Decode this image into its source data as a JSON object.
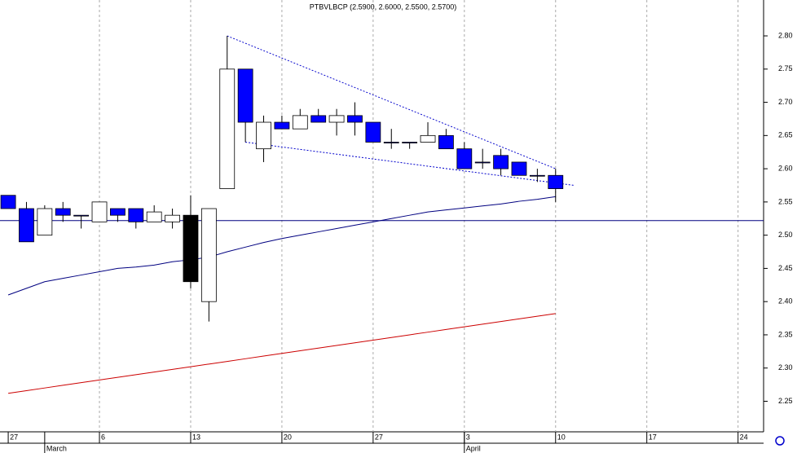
{
  "chart_data": {
    "type": "candlestick",
    "title": "PTBVLBCP (2.5900, 2.6000, 2.5500, 2.5700)",
    "categories": [
      "27",
      null,
      null,
      null,
      null,
      "6",
      null,
      null,
      null,
      null,
      "13",
      null,
      null,
      null,
      null,
      "20",
      null,
      null,
      null,
      null,
      "27",
      null,
      null,
      null,
      null,
      "3",
      null,
      null,
      null,
      null,
      "10",
      null,
      null,
      null,
      null,
      "17",
      null,
      null,
      null,
      null,
      "24"
    ],
    "month_labels": [
      null,
      null,
      "March",
      null,
      null,
      null,
      null,
      null,
      null,
      null,
      null,
      null,
      null,
      null,
      null,
      null,
      null,
      null,
      null,
      null,
      null,
      null,
      null,
      null,
      null,
      "April",
      null,
      null,
      null,
      null,
      null,
      null,
      null,
      null,
      null,
      null,
      null,
      null,
      null,
      null,
      null
    ],
    "open": [
      2.56,
      2.54,
      2.5,
      2.54,
      2.53,
      2.52,
      2.54,
      2.54,
      2.52,
      2.52,
      2.53,
      2.4,
      2.57,
      2.75,
      2.63,
      2.67,
      2.66,
      2.68,
      2.67,
      2.68,
      2.67,
      2.64,
      2.64,
      2.64,
      2.65,
      2.63,
      2.61,
      2.62,
      2.61,
      2.59,
      2.59,
      null,
      null,
      null,
      null,
      null,
      null,
      null,
      null,
      null,
      null
    ],
    "high": [
      2.56,
      2.55,
      2.545,
      2.55,
      2.53,
      2.55,
      2.54,
      2.54,
      2.545,
      2.54,
      2.56,
      2.54,
      2.8,
      2.75,
      2.68,
      2.68,
      2.69,
      2.69,
      2.69,
      2.7,
      2.67,
      2.66,
      2.64,
      2.67,
      2.66,
      2.64,
      2.63,
      2.63,
      2.61,
      2.6,
      2.6,
      null,
      null,
      null,
      null,
      null,
      null,
      null,
      null,
      null,
      null
    ],
    "low": [
      2.54,
      2.49,
      2.5,
      2.52,
      2.51,
      2.52,
      2.52,
      2.51,
      2.52,
      2.51,
      2.42,
      2.37,
      2.57,
      2.64,
      2.61,
      2.66,
      2.66,
      2.67,
      2.65,
      2.65,
      2.64,
      2.63,
      2.63,
      2.64,
      2.63,
      2.6,
      2.6,
      2.59,
      2.59,
      2.58,
      2.55,
      null,
      null,
      null,
      null,
      null,
      null,
      null,
      null,
      null,
      null
    ],
    "close": [
      2.54,
      2.49,
      2.54,
      2.53,
      2.53,
      2.55,
      2.53,
      2.52,
      2.535,
      2.53,
      2.43,
      2.54,
      2.75,
      2.67,
      2.67,
      2.66,
      2.68,
      2.67,
      2.68,
      2.67,
      2.64,
      2.64,
      2.64,
      2.65,
      2.63,
      2.6,
      2.61,
      2.6,
      2.59,
      2.59,
      2.57,
      null,
      null,
      null,
      null,
      null,
      null,
      null,
      null,
      null,
      null
    ],
    "colors": [
      "#0000ff",
      "#0000ff",
      "#ffffff",
      "#0000ff",
      "#0000ff",
      "#ffffff",
      "#0000ff",
      "#0000ff",
      "#ffffff",
      "#ffffff",
      "#000000",
      "#ffffff",
      "#ffffff",
      "#0000ff",
      "#ffffff",
      "#0000ff",
      "#ffffff",
      "#0000ff",
      "#ffffff",
      "#0000ff",
      "#0000ff",
      "#0000ff",
      "#0000ff",
      "#ffffff",
      "#0000ff",
      "#0000ff",
      "#0000ff",
      "#0000ff",
      "#0000ff",
      "#0000ff",
      "#0000ff",
      null,
      null,
      null,
      null,
      null,
      null,
      null,
      null,
      null,
      null
    ],
    "moving_averages": [
      {
        "color": "#000080",
        "values": [
          2.41,
          2.42,
          2.43,
          2.435,
          2.44,
          2.445,
          2.45,
          2.452,
          2.455,
          2.46,
          2.463,
          2.467,
          2.475,
          2.482,
          2.489,
          2.495,
          2.5,
          2.505,
          2.51,
          2.515,
          2.52,
          2.525,
          2.53,
          2.535,
          2.538,
          2.541,
          2.544,
          2.547,
          2.551,
          2.554,
          2.558,
          null,
          null,
          null,
          null,
          null,
          null,
          null,
          null,
          null,
          null
        ]
      },
      {
        "color": "#cc0000",
        "values": [
          2.262,
          2.266,
          2.27,
          2.274,
          2.278,
          2.282,
          2.286,
          2.29,
          2.294,
          2.298,
          2.302,
          2.306,
          2.31,
          2.314,
          2.318,
          2.322,
          2.326,
          2.33,
          2.334,
          2.338,
          2.342,
          2.346,
          2.35,
          2.354,
          2.358,
          2.362,
          2.366,
          2.37,
          2.374,
          2.378,
          2.382,
          null,
          null,
          null,
          null,
          null,
          null,
          null,
          null,
          null,
          null
        ]
      }
    ],
    "trendlines": [
      {
        "x": [
          12,
          30
        ],
        "values": [
          2.8,
          2.6
        ]
      },
      {
        "x": [
          13,
          31
        ],
        "values": [
          2.64,
          2.575
        ]
      }
    ],
    "hline": 2.522,
    "xlim": [
      -0.45,
      41.4
    ],
    "ylim": [
      2.204,
      2.854
    ],
    "yticks": [
      2.25,
      {
        "value": 2.3,
        "label": "2.30"
      },
      2.35,
      {
        "value": 2.4,
        "label": "2.40"
      },
      2.45,
      {
        "value": 2.5,
        "label": "2.50"
      },
      2.55,
      {
        "value": 2.6,
        "label": "2.60"
      },
      2.65,
      {
        "value": 2.7,
        "label": "2.70"
      },
      2.75,
      {
        "value": 2.8,
        "label": "2.80"
      }
    ],
    "grid": true
  }
}
